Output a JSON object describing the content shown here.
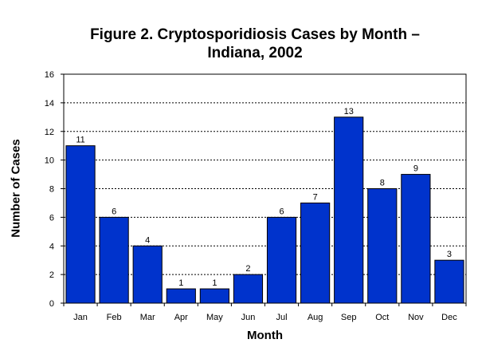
{
  "chart_data": {
    "type": "bar",
    "title_lines": [
      "Figure 2. Cryptosporidiosis Cases by Month –",
      "Indiana, 2002"
    ],
    "xlabel": "Month",
    "ylabel": "Number of Cases",
    "categories": [
      "Jan",
      "Feb",
      "Mar",
      "Apr",
      "May",
      "Jun",
      "Jul",
      "Aug",
      "Sep",
      "Oct",
      "Nov",
      "Dec"
    ],
    "values": [
      11,
      6,
      4,
      1,
      1,
      2,
      6,
      7,
      13,
      8,
      9,
      3
    ],
    "ylim": [
      0,
      16
    ],
    "yticks": [
      0,
      2,
      4,
      6,
      8,
      10,
      12,
      14,
      16
    ],
    "grid": true,
    "bar_color": "#0033cc",
    "data_labels": true
  }
}
